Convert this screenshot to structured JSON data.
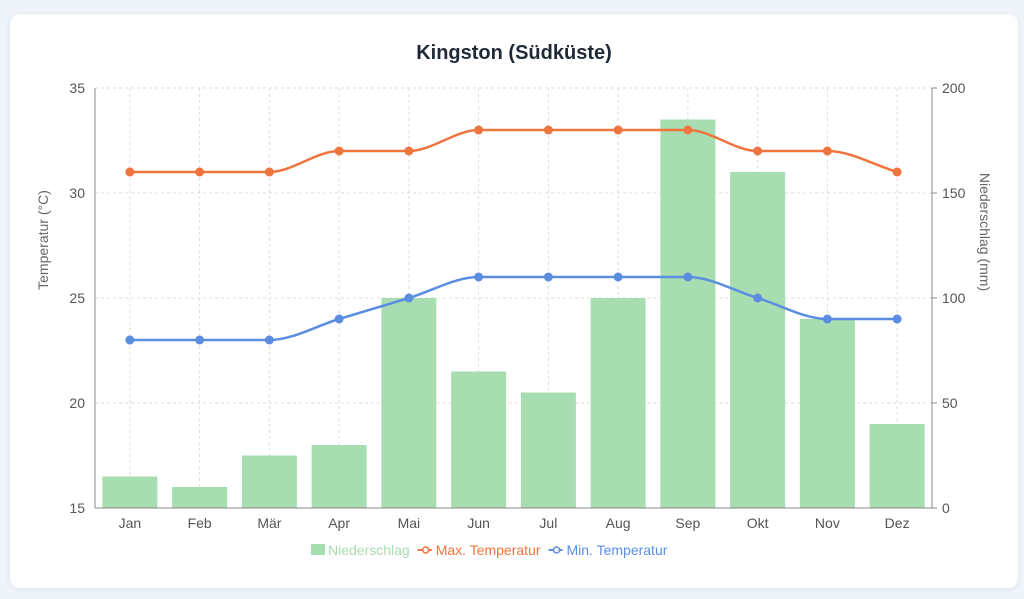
{
  "chart_data": {
    "type": "bar+line",
    "title": "Kingston (Südküste)",
    "categories": [
      "Jan",
      "Feb",
      "Mär",
      "Apr",
      "Mai",
      "Jun",
      "Jul",
      "Aug",
      "Sep",
      "Okt",
      "Nov",
      "Dez"
    ],
    "y_left": {
      "label": "Temperatur (°C)",
      "range": [
        15,
        35
      ],
      "ticks": [
        15,
        20,
        25,
        30,
        35
      ]
    },
    "y_right": {
      "label": "Niederschlag (mm)",
      "range": [
        0,
        200
      ],
      "ticks": [
        0,
        50,
        100,
        150,
        200
      ]
    },
    "grid": true,
    "legend_position": "bottom",
    "series": [
      {
        "name": "Niederschlag",
        "type": "bar",
        "axis": "right",
        "color": "#a8dcb1",
        "values": [
          15,
          10,
          25,
          30,
          100,
          65,
          55,
          100,
          185,
          160,
          90,
          40
        ]
      },
      {
        "name": "Max. Temperatur",
        "type": "line",
        "axis": "left",
        "color": "#f0743e",
        "values": [
          31,
          31,
          31,
          32,
          32,
          33,
          33,
          33,
          33,
          32,
          32,
          31
        ]
      },
      {
        "name": "Min. Temperatur",
        "type": "line",
        "axis": "left",
        "color": "#5b8ee0",
        "values": [
          23,
          23,
          23,
          24,
          25,
          26,
          26,
          26,
          26,
          25,
          24,
          24
        ]
      }
    ]
  }
}
